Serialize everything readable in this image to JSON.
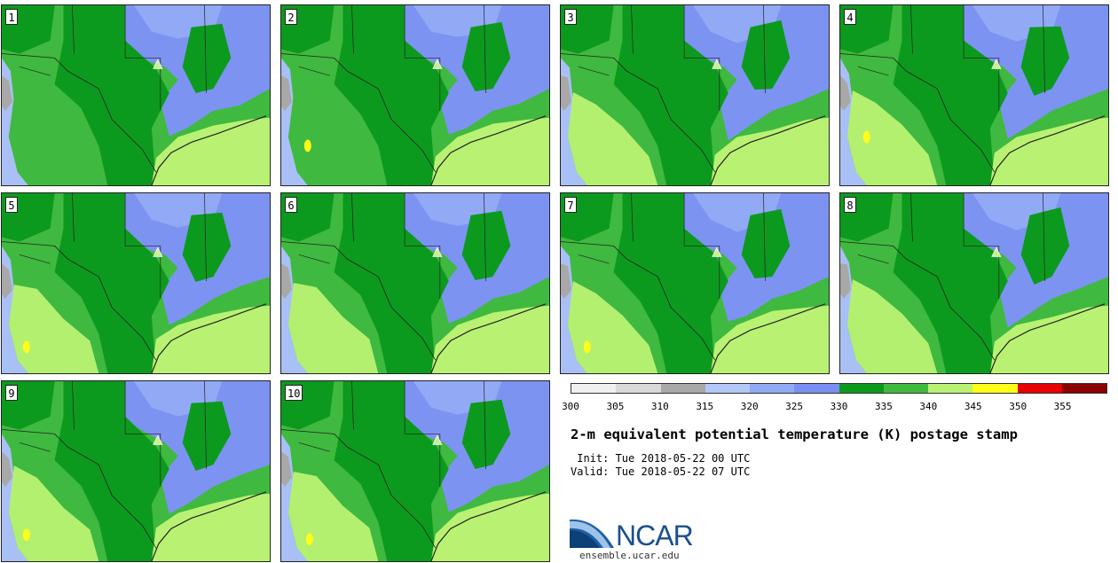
{
  "panels": [
    {
      "label": "1"
    },
    {
      "label": "2"
    },
    {
      "label": "3"
    },
    {
      "label": "4"
    },
    {
      "label": "5"
    },
    {
      "label": "6"
    },
    {
      "label": "7"
    },
    {
      "label": "8"
    },
    {
      "label": "9"
    },
    {
      "label": "10"
    }
  ],
  "colorbar": {
    "colors": [
      "#f0f0f0",
      "#d9d9d9",
      "#a8a8a8",
      "#b4c8f8",
      "#92aaf5",
      "#7a8ff2",
      "#0c9a1e",
      "#3fb93f",
      "#b9f273",
      "#ffff18",
      "#e80000",
      "#8c0000"
    ],
    "ticks": [
      "300",
      "305",
      "310",
      "315",
      "320",
      "325",
      "330",
      "335",
      "340",
      "345",
      "350",
      "355"
    ]
  },
  "title": "2-m equivalent potential temperature (K) postage stamp",
  "init": " Init: Tue 2018-05-22 00 UTC",
  "valid": "Valid: Tue 2018-05-22 07 UTC",
  "logo": {
    "text": "NCAR",
    "url": "ensemble.ucar.edu"
  },
  "map_colors": {
    "ocean": "#a8c0f5",
    "cool": "#7d93f2",
    "cooler": "#92aaf5",
    "dark_green": "#0c9a1e",
    "mid_green": "#3fb93f",
    "light_green": "#b9f273",
    "yellow": "#ffff18",
    "gray": "#a8a8a8",
    "border": "#222222"
  }
}
